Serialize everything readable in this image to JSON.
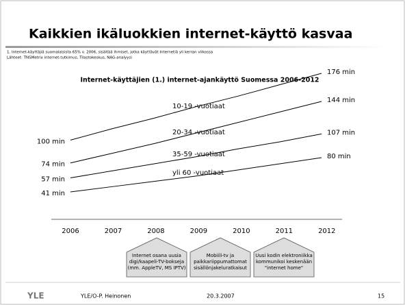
{
  "slide": {
    "title": "Kaikkien ikäluokkien internet-käyttö kasvaa",
    "notes": [
      "1. Internet-käyttäjiä suomalaisista 65% v. 2006, sisältää ihmiset, jotka käyttävät Internetiä yli kerran viikossa",
      "Lähteet: TNSMetrix internet-tutkimus, Tilastokeskus, NAG-analyysi"
    ],
    "callouts": [
      [
        "Internet osana uusia",
        "digi/kaapeli-TV-bokseja",
        "(mm. AppleTV, MS IPTV)"
      ],
      [
        "Mobiili-tv ja",
        "paikkariippumattomat",
        "sisällönjakeluratkaisut"
      ],
      [
        "Uusi kodin elektroniikka",
        "kommunikoi keskenään",
        "\"internet home\""
      ]
    ],
    "footer": {
      "logo": "YLE",
      "author": "YLE/O-P. Heinonen",
      "date": "20.3.2007",
      "page": "15"
    }
  },
  "chart_data": {
    "type": "line",
    "title": "Internet-käyttäjien (1.) internet-ajankäyttö Suomessa 2006-2012",
    "categories": [
      "2006",
      "2007",
      "2008",
      "2009",
      "2010",
      "2011",
      "2012"
    ],
    "series": [
      {
        "name": "10-19 -vuotiaat",
        "color": "#000000",
        "values": [
          100,
          113,
          125,
          138,
          150,
          163,
          176
        ],
        "value_labels": [
          "100 min",
          null,
          null,
          null,
          null,
          null,
          "176 min"
        ]
      },
      {
        "name": "20-34 -vuotiaat",
        "color": "#000000",
        "values": [
          74,
          85,
          96,
          108,
          120,
          132,
          144
        ],
        "value_labels": [
          "74 min",
          null,
          null,
          null,
          null,
          null,
          "144 min"
        ]
      },
      {
        "name": "35-59 -vuotiaat",
        "color": "#000000",
        "values": [
          57,
          65,
          73,
          81,
          90,
          98,
          107
        ],
        "value_labels": [
          "57 min",
          null,
          null,
          null,
          null,
          null,
          "107 min"
        ]
      },
      {
        "name": "yli 60 -vuotiaat",
        "color": "#000000",
        "values": [
          41,
          47,
          53,
          59,
          66,
          73,
          80
        ],
        "value_labels": [
          "41 min",
          null,
          null,
          null,
          null,
          null,
          "80 min"
        ]
      }
    ]
  }
}
